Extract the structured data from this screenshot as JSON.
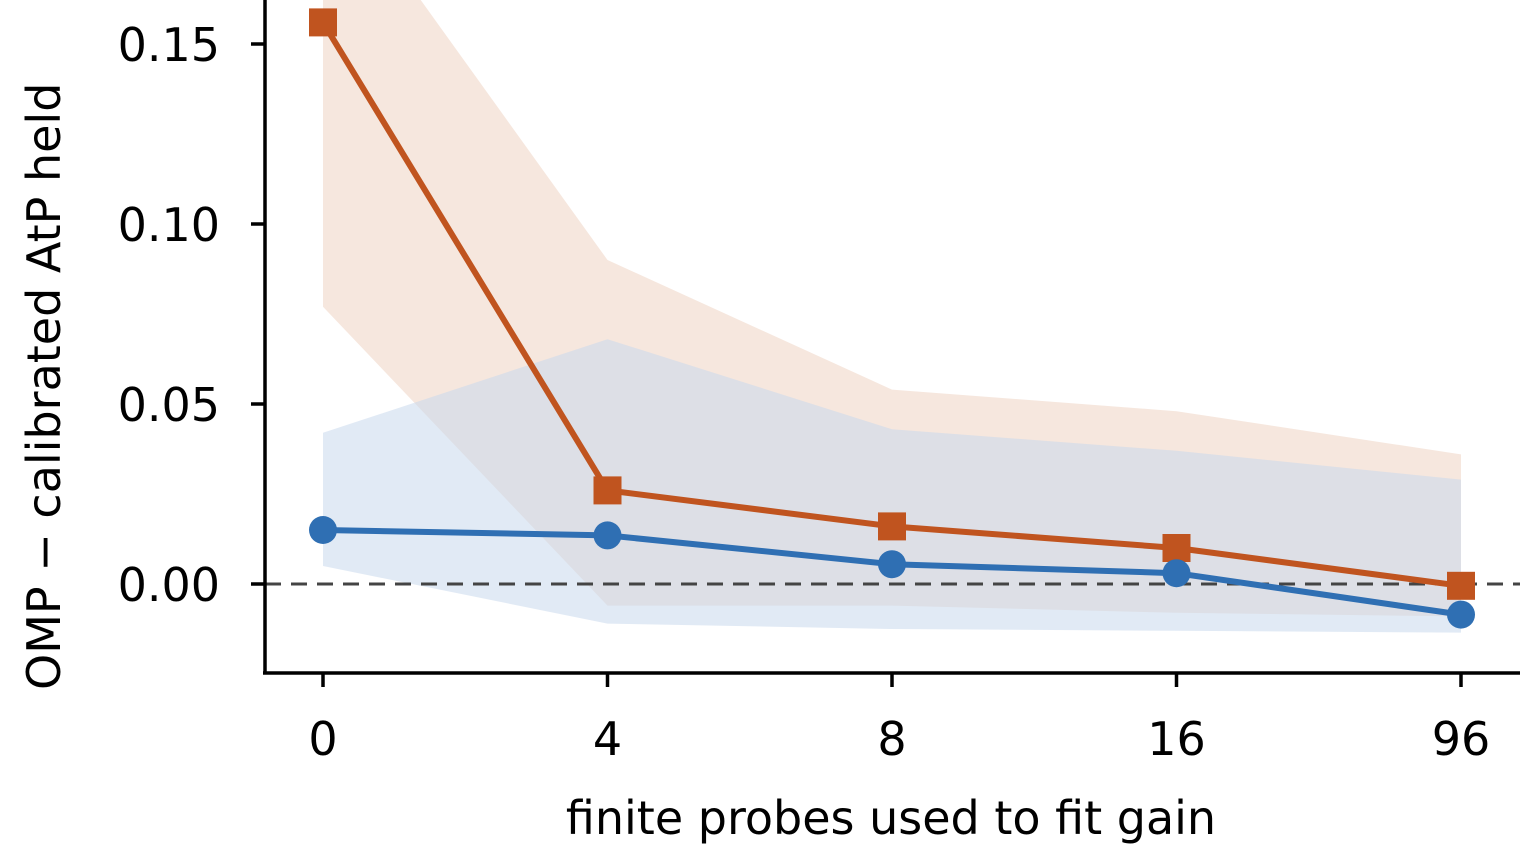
{
  "chart_data": {
    "type": "line",
    "title": "",
    "xlabel": "finite probes used to fit gain",
    "ylabel": "OMP − calibrated AtP held",
    "categories": [
      "0",
      "4",
      "8",
      "16",
      "96"
    ],
    "ylim": [
      -0.025,
      0.16
    ],
    "yticks": [
      0.0,
      0.05,
      0.1,
      0.15
    ],
    "ytick_labels": [
      "0.00",
      "0.05",
      "0.10",
      "0.15"
    ],
    "reference_line": {
      "y": 0.0,
      "style": "dashed",
      "color": "#444444"
    },
    "grid": false,
    "series": [
      {
        "color": "#c0541f",
        "band_color": "#f6e6dc",
        "marker": "square",
        "values": [
          0.156,
          0.026,
          0.016,
          0.01,
          -0.0005
        ],
        "band_upper": [
          0.2,
          0.09,
          0.054,
          0.048,
          0.036
        ],
        "band_lower": [
          0.077,
          -0.006,
          -0.006,
          -0.008,
          -0.009
        ]
      },
      {
        "color": "#2f6fb3",
        "band_color": "#c9d9ec",
        "marker": "circle",
        "values": [
          0.015,
          0.0135,
          0.0055,
          0.003,
          -0.0085
        ],
        "band_upper": [
          0.042,
          0.068,
          0.043,
          0.037,
          0.029
        ],
        "band_lower": [
          0.005,
          -0.011,
          -0.0125,
          -0.013,
          -0.0135
        ]
      }
    ]
  }
}
